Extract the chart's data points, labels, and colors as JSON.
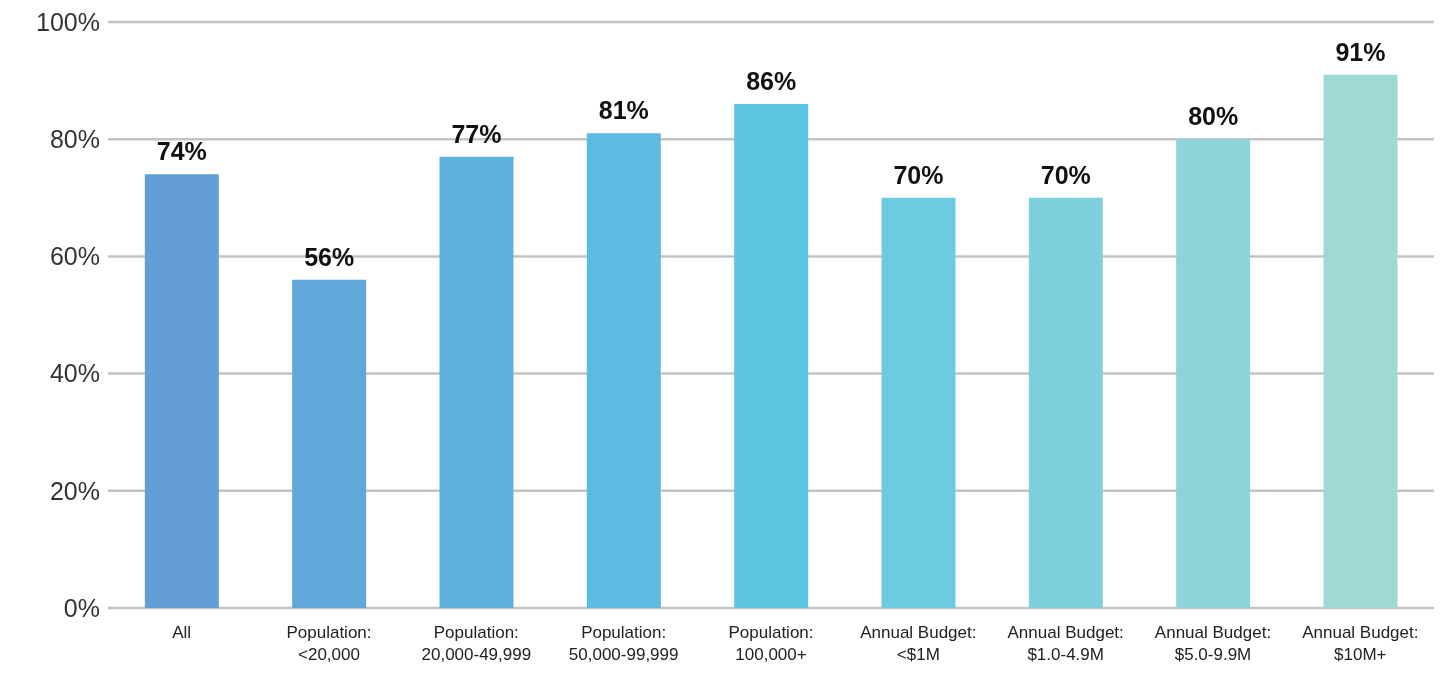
{
  "chart_data": {
    "type": "bar",
    "categories": [
      "All",
      "Population:\n<20,000",
      "Population:\n20,000-49,999",
      "Population:\n50,000-99,999",
      "Population:\n100,000+",
      "Annual Budget:\n<$1M",
      "Annual Budget:\n$1.0-4.9M",
      "Annual Budget:\n$5.0-9.9M",
      "Annual Budget:\n$10M+"
    ],
    "values": [
      74,
      56,
      77,
      81,
      86,
      70,
      70,
      80,
      91
    ],
    "value_labels": [
      "74%",
      "56%",
      "77%",
      "81%",
      "86%",
      "70%",
      "70%",
      "80%",
      "91%"
    ],
    "colors": [
      "#639fd4",
      "#5fa8d9",
      "#5eb0dd",
      "#5dbae0",
      "#5ec5e0",
      "#6ccbdf",
      "#7dd0dc",
      "#8ed3d8",
      "#9fd9d6"
    ],
    "ylim": [
      0,
      100
    ],
    "yticks": [
      {
        "value": 0,
        "label": "0%"
      },
      {
        "value": 20,
        "label": "20%"
      },
      {
        "value": 40,
        "label": "40%"
      },
      {
        "value": 60,
        "label": "60%"
      },
      {
        "value": 80,
        "label": "80%"
      },
      {
        "value": 100,
        "label": "100%"
      }
    ],
    "grid": "y"
  }
}
